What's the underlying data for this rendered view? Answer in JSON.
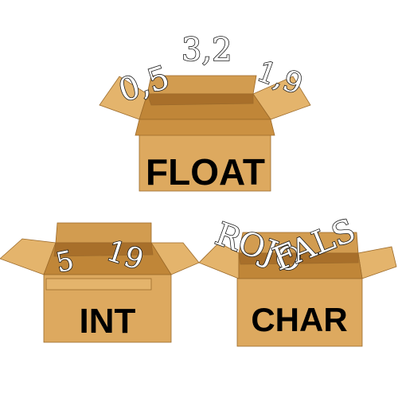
{
  "colors": {
    "box_front": "#dda95f",
    "box_side": "#cb9142",
    "box_inside": "#c08638",
    "box_inside_dark": "#a86f2a",
    "flap": "#e4b46c",
    "flap_dark": "#d29c50",
    "edge": "#9c6a2a"
  },
  "boxes": {
    "float": {
      "label": "FLOAT",
      "values": [
        {
          "text": "0,5"
        },
        {
          "text": "3,2"
        },
        {
          "text": "1,9"
        }
      ]
    },
    "int": {
      "label": "INT",
      "values": [
        {
          "text": "5"
        },
        {
          "text": "19"
        }
      ]
    },
    "char": {
      "label": "CHAR",
      "values": [
        {
          "text": "ROJO"
        },
        {
          "text": "FALS"
        }
      ]
    }
  }
}
